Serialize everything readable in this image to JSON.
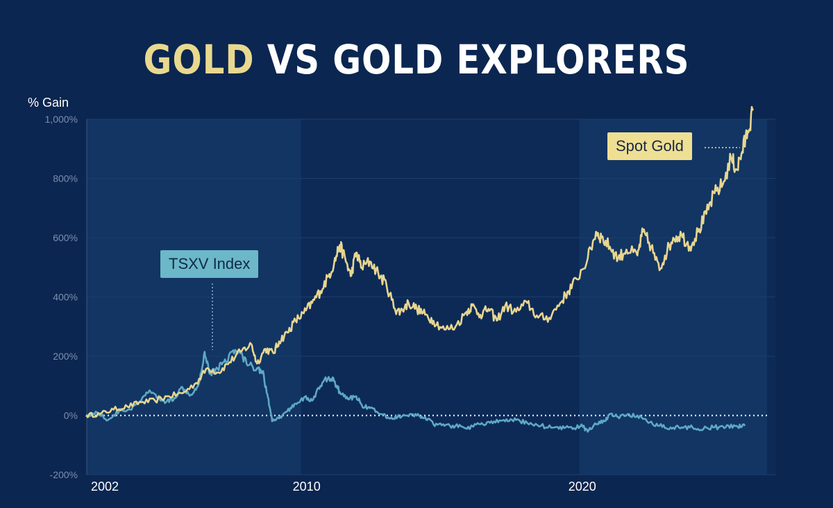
{
  "title": {
    "part1": "GOLD",
    "part2": " VS GOLD EXPLORERS"
  },
  "chart_data": {
    "type": "line",
    "title": "GOLD VS GOLD EXPLORERS",
    "ylabel": "% Gain",
    "xlabel": "",
    "ylim": [
      -200,
      1000
    ],
    "xlim": [
      2002,
      2026.7
    ],
    "y_ticks": [
      1000,
      800,
      600,
      400,
      200,
      0,
      -200
    ],
    "y_tick_labels": [
      "1,000%",
      "800%",
      "600%",
      "400%",
      "200%",
      "0%",
      "-200%"
    ],
    "x_ticks": [
      2002,
      2010,
      2020
    ],
    "x_tick_labels": [
      "2002",
      "2010",
      "2020"
    ],
    "reference_line": 0,
    "colors": {
      "gold": "#e8d690",
      "tsxv": "#5fa8c4",
      "background": "#0b2650",
      "shade": "#123563",
      "grid": "#1c3d6b"
    },
    "series": [
      {
        "name": "Spot Gold",
        "x": [
          2002.0,
          2002.5,
          2003.0,
          2003.5,
          2004.0,
          2004.5,
          2005.0,
          2005.5,
          2006.0,
          2006.4,
          2006.8,
          2007.2,
          2007.6,
          2008.0,
          2008.2,
          2008.5,
          2008.8,
          2009.0,
          2009.3,
          2009.6,
          2009.9,
          2010.2,
          2010.5,
          2010.8,
          2011.0,
          2011.2,
          2011.4,
          2011.6,
          2011.8,
          2012.0,
          2012.3,
          2012.6,
          2012.9,
          2013.2,
          2013.4,
          2013.7,
          2014.0,
          2014.3,
          2014.6,
          2015.0,
          2015.4,
          2015.8,
          2016.0,
          2016.3,
          2016.6,
          2016.9,
          2017.2,
          2017.6,
          2018.0,
          2018.4,
          2018.8,
          2019.2,
          2019.5,
          2019.8,
          2020.2,
          2020.5,
          2020.7,
          2021.0,
          2021.3,
          2021.6,
          2022.0,
          2022.2,
          2022.5,
          2022.8,
          2023.0,
          2023.3,
          2023.6,
          2023.9,
          2024.2,
          2024.5,
          2024.8,
          2025.1,
          2025.4,
          2025.6,
          2025.8,
          2026.0,
          2026.2
        ],
        "values": [
          0,
          5,
          20,
          30,
          45,
          50,
          65,
          75,
          110,
          160,
          145,
          180,
          215,
          240,
          175,
          225,
          210,
          250,
          280,
          320,
          345,
          380,
          420,
          470,
          515,
          575,
          530,
          470,
          550,
          500,
          520,
          480,
          440,
          360,
          350,
          380,
          360,
          340,
          320,
          290,
          300,
          350,
          370,
          340,
          360,
          320,
          370,
          350,
          380,
          330,
          330,
          380,
          420,
          460,
          530,
          620,
          600,
          570,
          530,
          560,
          540,
          620,
          570,
          490,
          540,
          600,
          610,
          570,
          620,
          680,
          750,
          780,
          870,
          830,
          890,
          960,
          1030
        ]
      },
      {
        "name": "TSXV Index",
        "x": [
          2002.0,
          2002.4,
          2002.8,
          2003.2,
          2003.6,
          2004.0,
          2004.3,
          2004.6,
          2004.9,
          2005.2,
          2005.5,
          2005.8,
          2006.1,
          2006.3,
          2006.5,
          2006.7,
          2007.0,
          2007.3,
          2007.6,
          2007.9,
          2008.2,
          2008.4,
          2008.6,
          2008.75,
          2009.0,
          2009.3,
          2009.6,
          2009.9,
          2010.2,
          2010.5,
          2010.8,
          2011.0,
          2011.2,
          2011.5,
          2011.8,
          2012.0,
          2012.3,
          2012.7,
          2013.0,
          2013.3,
          2013.6,
          2014.0,
          2014.3,
          2014.6,
          2015.0,
          2015.4,
          2015.8,
          2016.0,
          2016.4,
          2016.8,
          2017.2,
          2017.6,
          2018.0,
          2018.5,
          2019.0,
          2019.4,
          2019.8,
          2020.0,
          2020.2,
          2020.5,
          2020.8,
          2021.0,
          2021.3,
          2021.6,
          2022.0,
          2022.4,
          2022.8,
          2023.2,
          2023.6,
          2024.0,
          2024.4,
          2024.8,
          2025.2,
          2025.6,
          2025.9
        ],
        "values": [
          0,
          10,
          -15,
          15,
          20,
          50,
          85,
          60,
          45,
          60,
          95,
          70,
          110,
          215,
          140,
          155,
          180,
          215,
          210,
          170,
          160,
          150,
          60,
          -20,
          -10,
          15,
          40,
          60,
          50,
          100,
          130,
          115,
          80,
          55,
          65,
          35,
          25,
          5,
          -10,
          -5,
          0,
          0,
          -5,
          -30,
          -35,
          -35,
          -45,
          -35,
          -30,
          -20,
          -20,
          -15,
          -25,
          -35,
          -40,
          -40,
          -40,
          -35,
          -55,
          -30,
          -20,
          5,
          -5,
          0,
          0,
          -25,
          -35,
          -40,
          -40,
          -40,
          -45,
          -40,
          -40,
          -35,
          -35
        ]
      }
    ],
    "annotations": [
      {
        "text": "TSXV Index",
        "x": 2006.3,
        "y": 215,
        "series": "TSXV Index"
      },
      {
        "text": "Spot Gold",
        "x": 2025.3,
        "y": 900,
        "series": "Spot Gold"
      }
    ],
    "shaded_bands": [
      [
        2002,
        2009.8
      ],
      [
        2019.9,
        2026.7
      ]
    ]
  }
}
